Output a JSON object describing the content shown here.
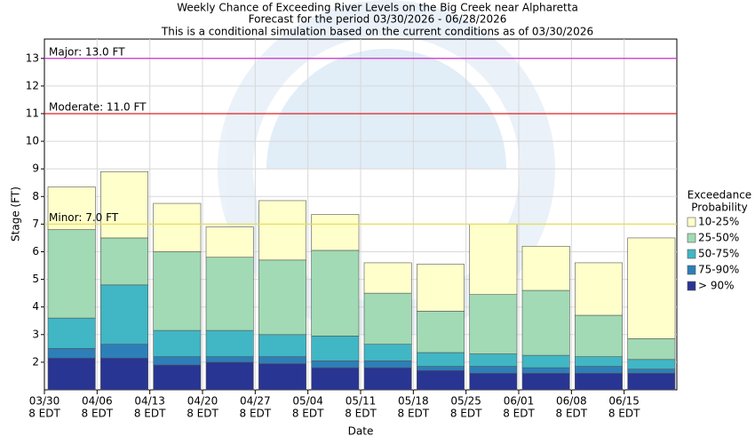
{
  "chart_data": {
    "type": "floating-bar",
    "title": [
      "Weekly Chance of Exceeding River Levels on the Big Creek near Alpharetta",
      "Forecast for the period 03/30/2026 - 06/28/2026",
      "This is a conditional simulation based on the current conditions as of 03/30/2026"
    ],
    "xlabel": "Date",
    "ylabel": "Stage (FT)",
    "categories": [
      "03/30",
      "04/06",
      "04/13",
      "04/20",
      "04/27",
      "05/04",
      "05/11",
      "05/18",
      "05/25",
      "06/01",
      "06/08",
      "06/15"
    ],
    "category_time": "8 EDT",
    "series": [
      {
        "name": "> 90%",
        "color": "#283593",
        "values": [
          2.15,
          2.15,
          1.9,
          2.0,
          1.95,
          1.8,
          1.8,
          1.7,
          1.6,
          1.6,
          1.6,
          1.6
        ]
      },
      {
        "name": "75-90%",
        "color": "#2c7fb8",
        "values": [
          2.5,
          2.65,
          2.2,
          2.2,
          2.2,
          2.05,
          2.05,
          1.85,
          1.85,
          1.8,
          1.85,
          1.75
        ]
      },
      {
        "name": "50-75%",
        "color": "#41b6c4",
        "values": [
          3.6,
          4.8,
          3.15,
          3.15,
          3.0,
          2.95,
          2.65,
          2.35,
          2.3,
          2.25,
          2.2,
          2.1
        ]
      },
      {
        "name": "25-50%",
        "color": "#a1dab4",
        "values": [
          6.8,
          6.5,
          6.0,
          5.8,
          5.7,
          6.05,
          4.5,
          3.85,
          4.45,
          4.6,
          3.7,
          2.85
        ]
      },
      {
        "name": "10-25%",
        "color": "#ffffcc",
        "values": [
          8.35,
          8.9,
          7.75,
          6.9,
          7.85,
          7.35,
          5.6,
          5.55,
          7.0,
          6.2,
          5.6,
          6.5
        ]
      }
    ],
    "thresholds": [
      {
        "label": "Major: 13.0 FT",
        "value": 13,
        "color": "#cc33cc"
      },
      {
        "label": "Moderate: 11.0 FT",
        "value": 11,
        "color": "#dd2222"
      },
      {
        "label": "Minor: 7.0 FT",
        "value": 7,
        "color": "#e6e055"
      }
    ],
    "ylim": [
      1,
      13.7
    ],
    "yticks": [
      2,
      3,
      4,
      5,
      6,
      7,
      8,
      9,
      10,
      11,
      12,
      13
    ],
    "legend_title": [
      "Exceedance",
      "Probability"
    ],
    "legend": "right",
    "grid": true
  }
}
